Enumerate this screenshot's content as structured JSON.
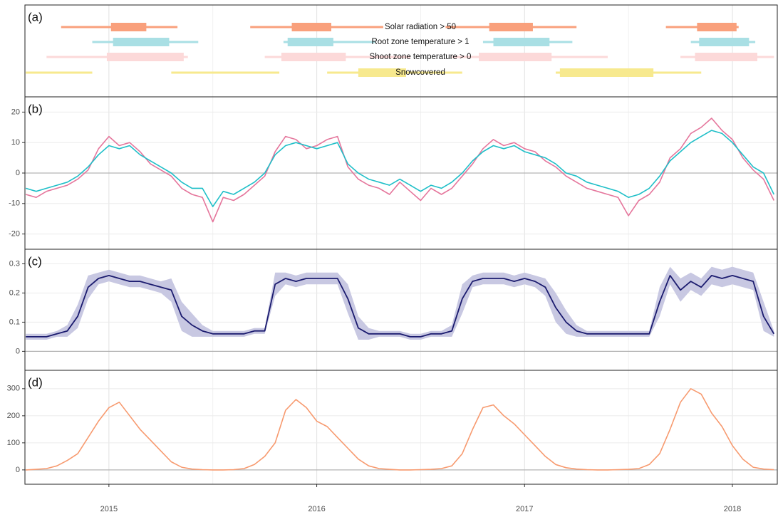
{
  "chart_data": [
    {
      "type": "timeline",
      "label": "(a)",
      "xlim": [
        2014.596,
        2018.216
      ],
      "xticks": [
        2015,
        2016,
        2017,
        2018
      ],
      "xminor": [
        2015.5,
        2016.5,
        2017.5
      ],
      "rows": [
        {
          "name": "Solar radiation > 50",
          "color": "#f9a07c",
          "ranges": [
            [
              2014.77,
              2015.33
            ],
            [
              2015.68,
              2016.32
            ],
            [
              2016.62,
              2017.25
            ],
            [
              2017.68,
              2018.03
            ]
          ],
          "cores": [
            [
              2015.01,
              2015.18
            ],
            [
              2015.88,
              2016.07
            ],
            [
              2016.83,
              2017.04
            ],
            [
              2017.83,
              2018.02
            ]
          ]
        },
        {
          "name": "Root zone temperature > 1",
          "color": "#a9dfe4",
          "ranges": [
            [
              2014.92,
              2015.43
            ],
            [
              2015.84,
              2016.28
            ],
            [
              2016.8,
              2017.23
            ],
            [
              2017.8,
              2018.11
            ]
          ],
          "cores": [
            [
              2015.02,
              2015.29
            ],
            [
              2015.86,
              2016.08
            ],
            [
              2016.85,
              2017.12
            ],
            [
              2017.84,
              2018.08
            ]
          ]
        },
        {
          "name": "Shoot zone temperature > 0",
          "color": "#fcd9d9",
          "ranges": [
            [
              2014.7,
              2015.38
            ],
            [
              2015.75,
              2016.45
            ],
            [
              2016.65,
              2017.4
            ],
            [
              2017.75,
              2018.2
            ]
          ],
          "cores": [
            [
              2014.99,
              2015.36
            ],
            [
              2015.83,
              2016.14
            ],
            [
              2016.78,
              2017.13
            ],
            [
              2017.82,
              2018.12
            ]
          ]
        },
        {
          "name": "Snowcovered",
          "color": "#f7e98e",
          "ranges": [
            [
              2014.6,
              2014.92
            ],
            [
              2015.3,
              2015.82
            ],
            [
              2016.05,
              2016.7
            ],
            [
              2017.15,
              2017.85
            ]
          ],
          "cores": [
            [
              2016.2,
              2016.43
            ],
            [
              2017.17,
              2017.62
            ]
          ]
        }
      ]
    },
    {
      "type": "line",
      "label": "(b)",
      "xlim": [
        2014.596,
        2018.216
      ],
      "xticks": [
        2015,
        2016,
        2017,
        2018
      ],
      "xminor": [
        2015.5,
        2016.5,
        2017.5
      ],
      "ylim": [
        -25,
        25
      ],
      "yticks": [
        -20,
        -10,
        0,
        10,
        20
      ],
      "x": [
        2014.6,
        2014.65,
        2014.7,
        2014.75,
        2014.8,
        2014.85,
        2014.9,
        2014.95,
        2015,
        2015.05,
        2015.1,
        2015.15,
        2015.2,
        2015.25,
        2015.3,
        2015.35,
        2015.4,
        2015.45,
        2015.5,
        2015.55,
        2015.6,
        2015.65,
        2015.7,
        2015.75,
        2015.8,
        2015.85,
        2015.9,
        2015.95,
        2016,
        2016.05,
        2016.1,
        2016.15,
        2016.2,
        2016.25,
        2016.3,
        2016.35,
        2016.4,
        2016.45,
        2016.5,
        2016.55,
        2016.6,
        2016.65,
        2016.7,
        2016.75,
        2016.8,
        2016.85,
        2016.9,
        2016.95,
        2017,
        2017.05,
        2017.1,
        2017.15,
        2017.2,
        2017.25,
        2017.3,
        2017.35,
        2017.4,
        2017.45,
        2017.5,
        2017.55,
        2017.6,
        2017.65,
        2017.7,
        2017.75,
        2017.8,
        2017.85,
        2017.9,
        2017.95,
        2018,
        2018.05,
        2018.1,
        2018.15,
        2018.2
      ],
      "series": [
        {
          "color": "#e5769c",
          "values": [
            -7,
            -8,
            -6,
            -5,
            -4,
            -2,
            1,
            8,
            12,
            9,
            10,
            7,
            3,
            1,
            -1,
            -5,
            -7,
            -8,
            -16,
            -8,
            -9,
            -7,
            -4,
            -1,
            7,
            12,
            11,
            8,
            9,
            11,
            12,
            2,
            -2,
            -4,
            -5,
            -7,
            -3,
            -6,
            -9,
            -5,
            -7,
            -5,
            -1,
            3,
            8,
            11,
            9,
            10,
            8,
            7,
            4,
            2,
            -1,
            -3,
            -5,
            -6,
            -7,
            -8,
            -14,
            -9,
            -7,
            -3,
            5,
            8,
            13,
            15,
            18,
            14,
            11,
            5,
            1,
            -2,
            -9
          ]
        },
        {
          "color": "#1fbfc8",
          "values": [
            -5,
            -6,
            -5,
            -4,
            -3,
            -1,
            2,
            6,
            9,
            8,
            9,
            6,
            4,
            2,
            0,
            -3,
            -5,
            -5,
            -11,
            -6,
            -7,
            -5,
            -3,
            0,
            6,
            9,
            10,
            9,
            8,
            9,
            10,
            3,
            0,
            -2,
            -3,
            -4,
            -2,
            -4,
            -6,
            -4,
            -5,
            -3,
            0,
            4,
            7,
            9,
            8,
            9,
            7,
            6,
            5,
            3,
            0,
            -1,
            -3,
            -4,
            -5,
            -6,
            -8,
            -7,
            -5,
            -1,
            4,
            7,
            10,
            12,
            14,
            13,
            10,
            6,
            2,
            0,
            -7
          ]
        }
      ]
    },
    {
      "type": "band",
      "label": "(c)",
      "xlim": [
        2014.596,
        2018.216
      ],
      "xticks": [
        2015,
        2016,
        2017,
        2018
      ],
      "xminor": [
        2015.5,
        2016.5,
        2017.5
      ],
      "ylim": [
        -0.065,
        0.35
      ],
      "yticks": [
        0,
        0.1,
        0.2,
        0.3
      ],
      "x": [
        2014.6,
        2014.65,
        2014.7,
        2014.75,
        2014.8,
        2014.85,
        2014.9,
        2014.95,
        2015,
        2015.05,
        2015.1,
        2015.15,
        2015.2,
        2015.25,
        2015.3,
        2015.35,
        2015.4,
        2015.45,
        2015.5,
        2015.55,
        2015.6,
        2015.65,
        2015.7,
        2015.75,
        2015.8,
        2015.85,
        2015.9,
        2015.95,
        2016,
        2016.05,
        2016.1,
        2016.15,
        2016.2,
        2016.25,
        2016.3,
        2016.35,
        2016.4,
        2016.45,
        2016.5,
        2016.55,
        2016.6,
        2016.65,
        2016.7,
        2016.75,
        2016.8,
        2016.85,
        2016.9,
        2016.95,
        2017,
        2017.05,
        2017.1,
        2017.15,
        2017.2,
        2017.25,
        2017.3,
        2017.35,
        2017.4,
        2017.45,
        2017.5,
        2017.55,
        2017.6,
        2017.65,
        2017.7,
        2017.75,
        2017.8,
        2017.85,
        2017.9,
        2017.95,
        2018,
        2018.05,
        2018.1,
        2018.15,
        2018.2
      ],
      "series": [
        {
          "color": "#1b1b6f",
          "band_color": "#c8c8e2",
          "values": [
            0.05,
            0.05,
            0.05,
            0.06,
            0.07,
            0.12,
            0.22,
            0.25,
            0.26,
            0.25,
            0.24,
            0.24,
            0.23,
            0.22,
            0.21,
            0.12,
            0.09,
            0.07,
            0.06,
            0.06,
            0.06,
            0.06,
            0.07,
            0.07,
            0.23,
            0.25,
            0.24,
            0.25,
            0.25,
            0.25,
            0.25,
            0.18,
            0.08,
            0.06,
            0.06,
            0.06,
            0.06,
            0.05,
            0.05,
            0.06,
            0.06,
            0.07,
            0.18,
            0.24,
            0.25,
            0.25,
            0.25,
            0.24,
            0.25,
            0.24,
            0.22,
            0.15,
            0.1,
            0.07,
            0.06,
            0.06,
            0.06,
            0.06,
            0.06,
            0.06,
            0.06,
            0.17,
            0.26,
            0.21,
            0.24,
            0.22,
            0.26,
            0.25,
            0.26,
            0.25,
            0.24,
            0.12,
            0.06
          ],
          "errors": [
            0.01,
            0.01,
            0.01,
            0.01,
            0.02,
            0.04,
            0.04,
            0.02,
            0.02,
            0.02,
            0.02,
            0.02,
            0.02,
            0.02,
            0.04,
            0.05,
            0.04,
            0.02,
            0.01,
            0.01,
            0.01,
            0.01,
            0.01,
            0.01,
            0.04,
            0.02,
            0.02,
            0.02,
            0.02,
            0.02,
            0.02,
            0.05,
            0.04,
            0.02,
            0.01,
            0.01,
            0.01,
            0.01,
            0.01,
            0.01,
            0.01,
            0.02,
            0.05,
            0.02,
            0.02,
            0.02,
            0.02,
            0.02,
            0.02,
            0.02,
            0.03,
            0.05,
            0.04,
            0.02,
            0.01,
            0.01,
            0.01,
            0.01,
            0.01,
            0.01,
            0.01,
            0.05,
            0.03,
            0.04,
            0.03,
            0.03,
            0.03,
            0.03,
            0.03,
            0.03,
            0.03,
            0.05,
            0.01
          ]
        }
      ]
    },
    {
      "type": "line",
      "label": "(d)",
      "xlim": [
        2014.596,
        2018.216
      ],
      "xticks": [
        2015,
        2016,
        2017,
        2018
      ],
      "xminor": [
        2015.5,
        2016.5,
        2017.5
      ],
      "ylim": [
        -53,
        368
      ],
      "yticks": [
        0,
        100,
        200,
        300
      ],
      "x": [
        2014.6,
        2014.65,
        2014.7,
        2014.75,
        2014.8,
        2014.85,
        2014.9,
        2014.95,
        2015,
        2015.05,
        2015.1,
        2015.15,
        2015.2,
        2015.25,
        2015.3,
        2015.35,
        2015.4,
        2015.45,
        2015.5,
        2015.55,
        2015.6,
        2015.65,
        2015.7,
        2015.75,
        2015.8,
        2015.85,
        2015.9,
        2015.95,
        2016,
        2016.05,
        2016.1,
        2016.15,
        2016.2,
        2016.25,
        2016.3,
        2016.35,
        2016.4,
        2016.45,
        2016.5,
        2016.55,
        2016.6,
        2016.65,
        2016.7,
        2016.75,
        2016.8,
        2016.85,
        2016.9,
        2016.95,
        2017,
        2017.05,
        2017.1,
        2017.15,
        2017.2,
        2017.25,
        2017.3,
        2017.35,
        2017.4,
        2017.45,
        2017.5,
        2017.55,
        2017.6,
        2017.65,
        2017.7,
        2017.75,
        2017.8,
        2017.85,
        2017.9,
        2017.95,
        2018,
        2018.05,
        2018.1,
        2018.15,
        2018.2
      ],
      "series": [
        {
          "color": "#f79a6f",
          "values": [
            0,
            2,
            5,
            15,
            35,
            60,
            120,
            180,
            230,
            250,
            200,
            150,
            110,
            70,
            30,
            10,
            3,
            1,
            0,
            0,
            1,
            5,
            20,
            50,
            100,
            220,
            260,
            230,
            180,
            160,
            120,
            80,
            40,
            15,
            5,
            2,
            0,
            0,
            1,
            2,
            5,
            15,
            60,
            150,
            230,
            240,
            200,
            170,
            130,
            90,
            50,
            20,
            8,
            3,
            1,
            0,
            0,
            1,
            2,
            5,
            20,
            60,
            150,
            250,
            300,
            280,
            210,
            160,
            90,
            40,
            10,
            3,
            1
          ]
        }
      ]
    }
  ]
}
